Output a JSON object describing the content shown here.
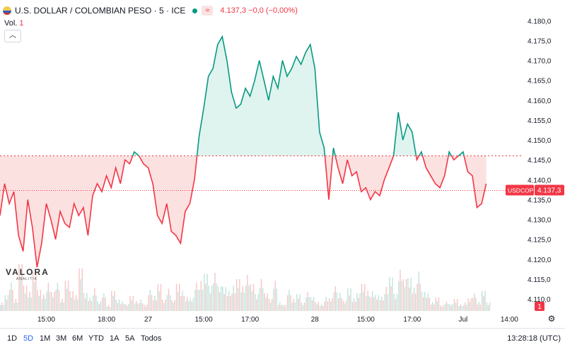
{
  "legend": {
    "symbol": "U.S. DOLLAR / COLOMBIAN PESO · 5 · ICE",
    "status_icon": "market-open-dot",
    "compare_icon": "≈",
    "price_text": "4.137,3  −0,0 (−0,00%)"
  },
  "volume_legend": {
    "label": "Vol.",
    "value": "1"
  },
  "collapse_icon": "chevron-up-icon",
  "watermark": {
    "word": "VALORA",
    "sub": "ANALITIK"
  },
  "ranges": [
    "1D",
    "5D",
    "1M",
    "3M",
    "6M",
    "YTD",
    "1A",
    "5A",
    "Todos"
  ],
  "active_range": "5D",
  "clock": "13:28:18 (UTC)",
  "colors": {
    "up": "#089981",
    "down": "#f23645",
    "baseline": "#f23645",
    "accent": "#2962ff"
  },
  "chart_data": {
    "type": "area",
    "subtype": "baseline",
    "baseline": 4146,
    "ylim": [
      4107,
      4182
    ],
    "y_ticks": [
      4110,
      4115,
      4120,
      4125,
      4130,
      4135,
      4140,
      4145,
      4150,
      4155,
      4160,
      4165,
      4170,
      4175,
      4180
    ],
    "y_tick_labels": [
      "4.110,0",
      "4.115,0",
      "4.120,0",
      "4.125,0",
      "4.130,0",
      "4.135,0",
      "4.140,0",
      "4.145,0",
      "4.150,0",
      "4.155,0",
      "4.160,0",
      "4.165,0",
      "4.170,0",
      "4.175,0",
      "4.180,0"
    ],
    "x_ticks": [
      {
        "label": "15:00",
        "x": 10
      },
      {
        "label": "18:00",
        "x": 23
      },
      {
        "label": "27",
        "x": 32
      },
      {
        "label": "15:00",
        "x": 44
      },
      {
        "label": "17:00",
        "x": 54
      },
      {
        "label": "28",
        "x": 68
      },
      {
        "label": "15:00",
        "x": 79
      },
      {
        "label": "17:00",
        "x": 89
      },
      {
        "label": "Jul",
        "x": 100
      },
      {
        "label": "14:00",
        "x": 110
      }
    ],
    "price_x": [
      0,
      1,
      2,
      3,
      4,
      5,
      6,
      7,
      8,
      9,
      10,
      11,
      12,
      13,
      14,
      15,
      16,
      17,
      18,
      19,
      20,
      21,
      22,
      23,
      24,
      25,
      26,
      27,
      28,
      29,
      30,
      31,
      32,
      33,
      34,
      35,
      36,
      37,
      38,
      39,
      40,
      41,
      42,
      43,
      44,
      45,
      46,
      47,
      48,
      49,
      50,
      51,
      52,
      53,
      54,
      55,
      56,
      57,
      58,
      59,
      60,
      61,
      62,
      63,
      64,
      65,
      66,
      67,
      68,
      69,
      70,
      71,
      72,
      73,
      74,
      75,
      76,
      77,
      78,
      79,
      80,
      81,
      82,
      83,
      84,
      85,
      86,
      87,
      88,
      89,
      90,
      91,
      92,
      93,
      94,
      95,
      96,
      97,
      98,
      99,
      100,
      101,
      102,
      103,
      104,
      105
    ],
    "price": [
      4131,
      4139,
      4134,
      4137,
      4126,
      4122,
      4135,
      4128,
      4118,
      4124,
      4134,
      4130,
      4125,
      4132,
      4129,
      4128,
      4134,
      4131,
      4133,
      4126,
      4136,
      4139,
      4137,
      4141,
      4138,
      4143,
      4139,
      4145,
      4144,
      4147,
      4146,
      4144,
      4143,
      4139,
      4131,
      4129,
      4134,
      4127,
      4126,
      4124,
      4132,
      4134,
      4140,
      4151,
      4158,
      4166,
      4168,
      4174,
      4176,
      4170,
      4162,
      4158,
      4159,
      4163,
      4161,
      4165,
      4170,
      4165,
      4160,
      4166,
      4163,
      4170,
      4166,
      4168,
      4171,
      4169,
      4172,
      4174,
      4168,
      4152,
      4148,
      4135,
      4148,
      4143,
      4139,
      4145,
      4141,
      4142,
      4137,
      4138,
      4135,
      4137,
      4136,
      4140,
      4143,
      4146,
      4157,
      4150,
      4154,
      4152,
      4145,
      4147,
      4143,
      4141,
      4139,
      4138,
      4141,
      4147,
      4145,
      4146,
      4147,
      4142,
      4141,
      4133,
      4134,
      4139
    ],
    "last_price": 4137.3,
    "last_price_label": "4.137,3",
    "last_price_tag": "USDCOP",
    "volume_label": "1",
    "volume": [
      3,
      5,
      8,
      4,
      14,
      9,
      6,
      11,
      7,
      5,
      10,
      6,
      8,
      4,
      9,
      7,
      5,
      12,
      6,
      4,
      8,
      3,
      5,
      2,
      6,
      4,
      3,
      2,
      5,
      3,
      4,
      2,
      6,
      5,
      8,
      4,
      7,
      3,
      9,
      6,
      5,
      4,
      8,
      10,
      11,
      9,
      12,
      7,
      8,
      6,
      9,
      10,
      7,
      12,
      8,
      6,
      10,
      5,
      4,
      9,
      3,
      2,
      6,
      4,
      5,
      3,
      6,
      4,
      3,
      2,
      5,
      4,
      7,
      6,
      3,
      8,
      4,
      5,
      9,
      6,
      7,
      5,
      4,
      8,
      10,
      6,
      13,
      9,
      11,
      7,
      14,
      6,
      5,
      3,
      4,
      2,
      3,
      2,
      4,
      2,
      3,
      4,
      5,
      3,
      6,
      3
    ]
  }
}
